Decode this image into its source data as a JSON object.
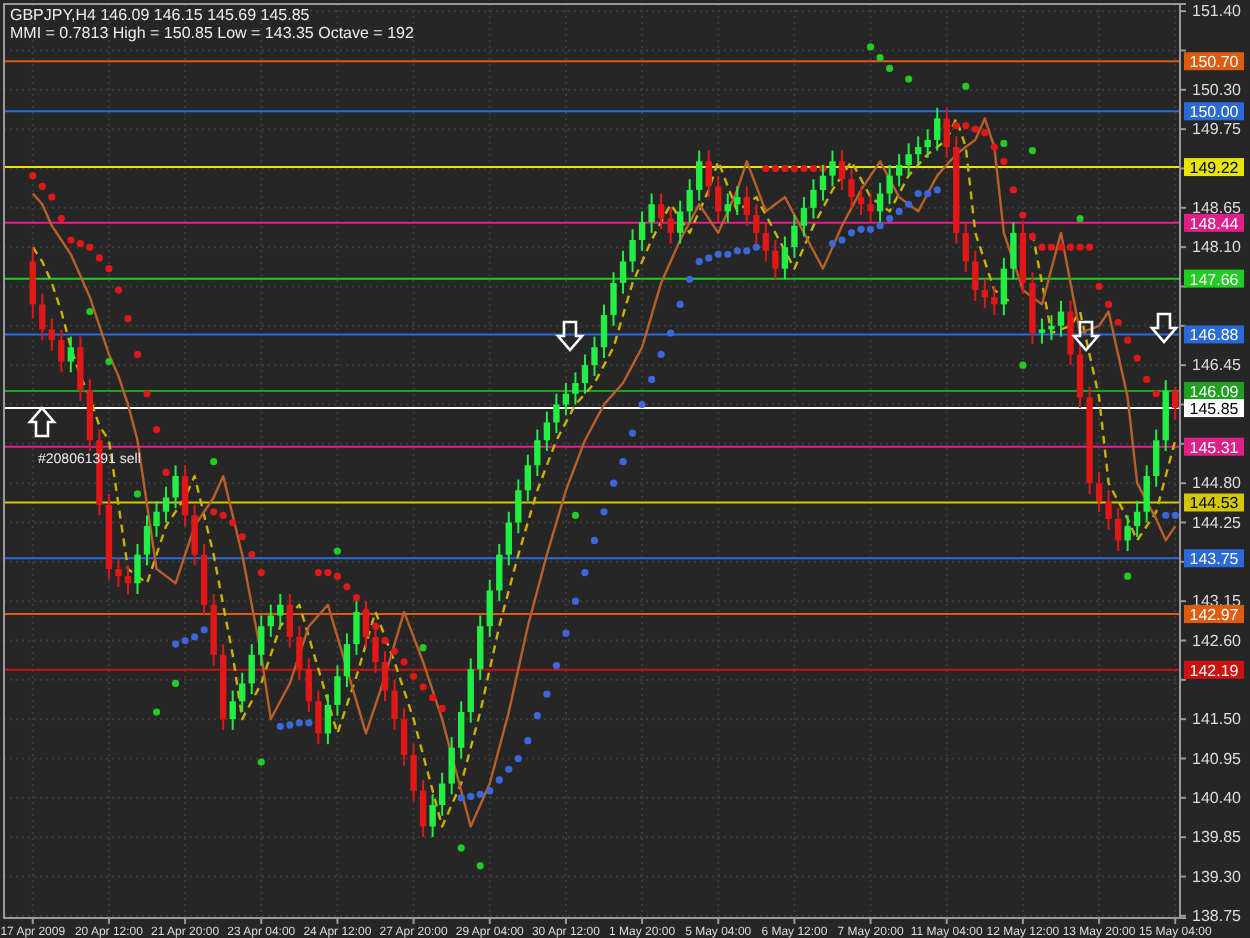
{
  "chart_data": {
    "type": "candlestick",
    "title": "GBPJPY,H4  146.09 146.15 145.69 145.85",
    "subtitle": "MMI = 0.7813  High = 150.85  Low = 143.35  Octave = 192",
    "annotations": [
      {
        "text": "#208061391 sell",
        "x": "17 Apr 2009",
        "y": 145.31
      }
    ],
    "categories": [
      "17 Apr 2009",
      null,
      null,
      null,
      null,
      null,
      null,
      null,
      "20 Apr 12:00",
      null,
      null,
      null,
      null,
      null,
      null,
      null,
      "21 Apr 20:00",
      null,
      null,
      null,
      null,
      null,
      null,
      null,
      "23 Apr 04:00",
      null,
      null,
      null,
      null,
      null,
      null,
      null,
      "24 Apr 12:00",
      null,
      null,
      null,
      null,
      null,
      null,
      null,
      "27 Apr 20:00",
      null,
      null,
      null,
      null,
      null,
      null,
      null,
      "29 Apr 04:00",
      null,
      null,
      null,
      null,
      null,
      null,
      null,
      "30 Apr 12:00",
      null,
      null,
      null,
      null,
      null,
      null,
      null,
      "1 May 20:00",
      null,
      null,
      null,
      null,
      null,
      null,
      null,
      "5 May 04:00",
      null,
      null,
      null,
      null,
      null,
      null,
      null,
      "6 May 12:00",
      null,
      null,
      null,
      null,
      null,
      null,
      null,
      "7 May 20:00",
      null,
      null,
      null,
      null,
      null,
      null,
      null,
      "11 May 04:00",
      null,
      null,
      null,
      null,
      null,
      null,
      null,
      "12 May 12:00",
      null,
      null,
      null,
      null,
      null,
      null,
      null,
      "13 May 20:00",
      null,
      null,
      null,
      null,
      null,
      null,
      null,
      "15 May 04:00"
    ],
    "ohlc": [
      [
        147.9,
        148.1,
        147.1,
        147.3
      ],
      [
        147.3,
        147.45,
        146.8,
        146.95
      ],
      [
        146.95,
        147.1,
        146.65,
        146.8
      ],
      [
        146.8,
        146.95,
        146.35,
        146.5
      ],
      [
        146.5,
        146.85,
        146.35,
        146.7
      ],
      [
        146.7,
        146.85,
        145.95,
        146.1
      ],
      [
        146.1,
        146.25,
        145.25,
        145.4
      ],
      [
        145.4,
        145.55,
        144.35,
        144.5
      ],
      [
        144.5,
        144.65,
        143.45,
        143.6
      ],
      [
        143.6,
        143.75,
        143.35,
        143.5
      ],
      [
        143.5,
        143.65,
        143.25,
        143.4
      ],
      [
        143.4,
        143.95,
        143.25,
        143.8
      ],
      [
        143.8,
        144.35,
        143.65,
        144.2
      ],
      [
        144.2,
        144.55,
        144.05,
        144.4
      ],
      [
        144.4,
        144.75,
        144.25,
        144.6
      ],
      [
        144.6,
        145.05,
        144.45,
        144.9
      ],
      [
        144.9,
        145.05,
        144.2,
        144.35
      ],
      [
        144.35,
        144.5,
        143.65,
        143.8
      ],
      [
        143.8,
        143.95,
        142.95,
        143.1
      ],
      [
        143.1,
        143.25,
        142.25,
        142.4
      ],
      [
        142.4,
        142.55,
        141.35,
        141.5
      ],
      [
        141.5,
        141.9,
        141.35,
        141.75
      ],
      [
        141.75,
        142.15,
        141.6,
        142.0
      ],
      [
        142.0,
        142.55,
        141.85,
        142.4
      ],
      [
        142.4,
        142.95,
        142.25,
        142.8
      ],
      [
        142.8,
        143.1,
        142.65,
        142.95
      ],
      [
        142.95,
        143.25,
        142.8,
        143.1
      ],
      [
        143.1,
        143.25,
        142.5,
        142.65
      ],
      [
        142.65,
        142.8,
        142.05,
        142.2
      ],
      [
        142.2,
        142.35,
        141.6,
        141.75
      ],
      [
        141.75,
        141.9,
        141.15,
        141.3
      ],
      [
        141.3,
        141.85,
        141.15,
        141.7
      ],
      [
        141.7,
        142.25,
        141.55,
        142.1
      ],
      [
        142.1,
        142.7,
        141.95,
        142.55
      ],
      [
        142.55,
        143.15,
        142.4,
        143.0
      ],
      [
        143.0,
        143.15,
        142.5,
        142.65
      ],
      [
        142.65,
        142.8,
        142.15,
        142.3
      ],
      [
        142.3,
        142.45,
        141.75,
        141.9
      ],
      [
        141.9,
        142.05,
        141.35,
        141.5
      ],
      [
        141.5,
        141.65,
        140.85,
        141.0
      ],
      [
        141.0,
        141.15,
        140.35,
        140.5
      ],
      [
        140.5,
        140.65,
        139.85,
        140.0
      ],
      [
        140.0,
        140.45,
        139.85,
        140.3
      ],
      [
        140.3,
        140.75,
        140.15,
        140.6
      ],
      [
        140.6,
        141.25,
        140.45,
        141.1
      ],
      [
        141.1,
        141.75,
        140.95,
        141.6
      ],
      [
        141.6,
        142.35,
        141.45,
        142.2
      ],
      [
        142.2,
        142.95,
        142.05,
        142.8
      ],
      [
        142.8,
        143.45,
        142.65,
        143.3
      ],
      [
        143.3,
        143.95,
        143.15,
        143.8
      ],
      [
        143.8,
        144.4,
        143.65,
        144.25
      ],
      [
        144.25,
        144.85,
        144.1,
        144.7
      ],
      [
        144.7,
        145.2,
        144.55,
        145.05
      ],
      [
        145.05,
        145.55,
        144.9,
        145.4
      ],
      [
        145.4,
        145.8,
        145.25,
        145.65
      ],
      [
        145.65,
        146.05,
        145.5,
        145.9
      ],
      [
        145.9,
        146.2,
        145.75,
        146.05
      ],
      [
        146.05,
        146.35,
        145.9,
        146.2
      ],
      [
        146.2,
        146.6,
        146.05,
        146.45
      ],
      [
        146.45,
        146.85,
        146.3,
        146.7
      ],
      [
        146.7,
        147.3,
        146.55,
        147.15
      ],
      [
        147.15,
        147.75,
        147.0,
        147.6
      ],
      [
        147.6,
        148.05,
        147.45,
        147.9
      ],
      [
        147.9,
        148.35,
        147.75,
        148.2
      ],
      [
        148.2,
        148.6,
        148.05,
        148.45
      ],
      [
        148.45,
        148.85,
        148.3,
        148.7
      ],
      [
        148.7,
        148.85,
        148.35,
        148.5
      ],
      [
        148.5,
        148.65,
        148.15,
        148.3
      ],
      [
        148.3,
        148.75,
        148.15,
        148.6
      ],
      [
        148.6,
        149.05,
        148.45,
        148.9
      ],
      [
        148.9,
        149.45,
        148.75,
        149.3
      ],
      [
        149.3,
        149.45,
        148.8,
        148.95
      ],
      [
        148.95,
        149.1,
        148.45,
        148.6
      ],
      [
        148.6,
        148.85,
        148.45,
        148.7
      ],
      [
        148.7,
        148.95,
        148.55,
        148.8
      ],
      [
        148.8,
        148.95,
        148.4,
        148.55
      ],
      [
        148.55,
        148.7,
        148.15,
        148.3
      ],
      [
        148.3,
        148.45,
        147.9,
        148.05
      ],
      [
        148.05,
        148.2,
        147.65,
        147.8
      ],
      [
        147.8,
        148.25,
        147.65,
        148.1
      ],
      [
        148.1,
        148.55,
        147.95,
        148.4
      ],
      [
        148.4,
        148.8,
        148.25,
        148.65
      ],
      [
        148.65,
        149.05,
        148.5,
        148.9
      ],
      [
        148.9,
        149.25,
        148.75,
        149.1
      ],
      [
        149.1,
        149.45,
        148.95,
        149.3
      ],
      [
        149.3,
        149.45,
        148.9,
        149.05
      ],
      [
        149.05,
        149.2,
        148.65,
        148.8
      ],
      [
        148.8,
        148.95,
        148.55,
        148.7
      ],
      [
        148.7,
        148.85,
        148.45,
        148.6
      ],
      [
        148.6,
        149.0,
        148.45,
        148.85
      ],
      [
        148.85,
        149.25,
        148.7,
        149.1
      ],
      [
        149.1,
        149.4,
        148.95,
        149.25
      ],
      [
        149.25,
        149.55,
        149.1,
        149.4
      ],
      [
        149.4,
        149.65,
        149.25,
        149.5
      ],
      [
        149.5,
        149.75,
        149.35,
        149.6
      ],
      [
        149.6,
        150.05,
        149.45,
        149.9
      ],
      [
        149.9,
        150.05,
        149.35,
        149.5
      ],
      [
        149.5,
        149.65,
        148.15,
        148.3
      ],
      [
        148.3,
        148.45,
        147.75,
        147.9
      ],
      [
        147.9,
        148.05,
        147.35,
        147.5
      ],
      [
        147.5,
        147.65,
        147.25,
        147.4
      ],
      [
        147.4,
        147.55,
        147.15,
        147.3
      ],
      [
        147.3,
        147.95,
        147.15,
        147.8
      ],
      [
        147.8,
        148.45,
        147.65,
        148.3
      ],
      [
        148.3,
        148.45,
        147.45,
        147.6
      ],
      [
        147.6,
        147.75,
        146.75,
        146.9
      ],
      [
        146.9,
        147.1,
        146.75,
        146.95
      ],
      [
        146.95,
        147.15,
        146.8,
        147.0
      ],
      [
        147.0,
        147.35,
        146.85,
        147.2
      ],
      [
        147.2,
        147.35,
        146.45,
        146.6
      ],
      [
        146.6,
        146.75,
        145.85,
        146.0
      ],
      [
        146.0,
        146.15,
        144.65,
        144.8
      ],
      [
        144.8,
        144.95,
        144.4,
        144.55
      ],
      [
        144.55,
        144.7,
        144.15,
        144.3
      ],
      [
        144.3,
        144.45,
        143.85,
        144.0
      ],
      [
        144.0,
        144.35,
        143.85,
        144.2
      ],
      [
        144.2,
        144.55,
        144.05,
        144.4
      ],
      [
        144.4,
        145.05,
        144.25,
        144.9
      ],
      [
        144.9,
        145.55,
        144.75,
        145.4
      ],
      [
        145.4,
        146.24,
        145.25,
        146.09
      ],
      [
        146.09,
        146.15,
        145.69,
        145.85
      ]
    ],
    "series": [
      {
        "type": "line",
        "color": "#c8b400",
        "line_style": "dashed",
        "values": [
          148.1,
          147.9,
          147.6,
          147.2,
          146.7,
          146.3,
          146.0,
          145.6,
          145.4,
          144.5,
          143.6,
          143.5,
          143.4,
          143.8,
          144.2,
          144.4,
          144.6,
          144.9,
          144.35,
          143.8,
          143.1,
          142.4,
          141.5,
          141.75,
          142.0,
          142.4,
          142.8,
          142.95,
          143.1,
          142.65,
          142.2,
          141.75,
          141.3,
          141.7,
          142.1,
          142.55,
          143.0,
          142.65,
          142.3,
          141.9,
          141.5,
          141.0,
          140.5,
          140.0,
          140.3,
          140.6,
          141.1,
          141.6,
          142.2,
          142.8,
          143.3,
          143.8,
          144.25,
          144.7,
          145.05,
          145.4,
          145.65,
          145.9,
          146.05,
          146.2,
          146.45,
          146.7,
          147.15,
          147.6,
          147.9,
          148.2,
          148.45,
          148.7,
          148.5,
          148.3,
          148.6,
          148.9,
          149.3,
          148.95,
          148.6,
          148.7,
          148.8,
          148.55,
          148.3,
          148.05,
          147.8,
          148.1,
          148.4,
          148.65,
          148.9,
          149.1,
          149.3,
          149.05,
          148.8,
          148.7,
          148.6,
          148.85,
          149.1,
          149.25,
          149.4,
          149.5,
          149.6,
          149.9,
          149.5,
          148.3,
          147.9,
          147.5,
          147.4,
          147.3,
          null,
          148.3,
          147.6,
          146.9,
          146.95,
          147.0,
          147.2,
          146.6,
          146.0,
          144.8,
          144.55,
          144.3,
          144.0,
          144.2,
          144.4,
          144.9,
          145.4
        ]
      },
      {
        "type": "line",
        "color": "#b8602c",
        "line_style": "solid",
        "values": [
          148.85,
          148.7,
          148.4,
          148.2,
          148.0,
          147.7,
          147.4,
          147.0,
          146.6,
          146.3,
          145.9,
          145.4,
          144.5,
          143.6,
          143.5,
          143.4,
          143.8,
          144.2,
          144.4,
          144.6,
          144.9,
          144.35,
          143.8,
          143.1,
          142.4,
          141.5,
          141.75,
          142.0,
          142.4,
          142.8,
          142.95,
          143.1,
          142.65,
          142.2,
          141.75,
          141.3,
          141.7,
          142.1,
          142.55,
          143.0,
          142.65,
          142.3,
          141.9,
          141.5,
          141.0,
          140.5,
          140.0,
          140.3,
          140.6,
          141.1,
          141.6,
          142.2,
          142.8,
          143.3,
          143.8,
          144.25,
          144.7,
          145.05,
          145.4,
          145.65,
          145.9,
          146.05,
          146.2,
          146.45,
          146.7,
          147.15,
          147.6,
          147.9,
          148.2,
          148.45,
          148.7,
          148.5,
          148.3,
          148.6,
          148.9,
          149.3,
          148.95,
          148.6,
          148.7,
          148.8,
          148.55,
          148.3,
          148.05,
          147.8,
          148.1,
          148.4,
          148.65,
          148.9,
          149.1,
          149.3,
          149.05,
          148.8,
          148.7,
          148.6,
          148.85,
          149.1,
          149.25,
          149.4,
          149.5,
          149.6,
          149.9,
          149.5,
          148.3,
          147.9,
          147.5,
          147.4,
          147.3,
          147.8,
          148.3,
          147.6,
          146.9,
          146.95,
          147.0,
          147.2,
          146.6,
          146.0,
          144.8,
          144.55,
          144.3,
          144.0,
          144.2
        ]
      },
      {
        "type": "scatter",
        "color": "#e01818",
        "marker": "circle",
        "values": [
          149.1,
          148.95,
          148.8,
          148.5,
          148.2,
          148.15,
          148.1,
          147.95,
          147.8,
          147.5,
          147.1,
          146.6,
          146.05,
          145.55,
          144.95,
          null,
          null,
          null,
          null,
          144.4,
          144.35,
          144.25,
          144.05,
          143.8,
          143.55,
          null,
          null,
          null,
          null,
          null,
          143.55,
          143.55,
          143.5,
          143.35,
          143.2,
          143.0,
          142.8,
          142.6,
          142.45,
          142.3,
          142.1,
          141.95,
          141.8,
          141.65,
          null,
          null,
          null,
          null,
          null,
          null,
          null,
          null,
          null,
          null,
          null,
          null,
          null,
          null,
          null,
          null,
          null,
          null,
          null,
          null,
          null,
          null,
          null,
          null,
          null,
          null,
          null,
          null,
          null,
          null,
          null,
          null,
          null,
          149.2,
          149.2,
          149.2,
          149.2,
          149.2,
          149.2,
          149.2,
          null,
          null,
          null,
          null,
          null,
          null,
          null,
          null,
          null,
          null,
          null,
          null,
          149.8,
          149.8,
          149.8,
          149.75,
          149.7,
          149.5,
          149.3,
          148.9,
          148.55,
          148.25,
          148.1,
          148.1,
          148.1,
          148.1,
          148.1,
          148.1,
          147.55,
          147.3,
          147.05,
          146.8,
          146.55,
          146.25,
          146.05,
          null,
          null
        ]
      },
      {
        "type": "scatter",
        "color": "#3a68d8",
        "marker": "circle",
        "values": [
          null,
          null,
          null,
          null,
          null,
          null,
          null,
          null,
          null,
          null,
          null,
          null,
          null,
          null,
          null,
          142.55,
          142.6,
          142.65,
          142.75,
          null,
          null,
          null,
          null,
          null,
          null,
          null,
          141.4,
          141.42,
          141.45,
          141.45,
          null,
          null,
          null,
          null,
          null,
          null,
          null,
          null,
          null,
          null,
          null,
          null,
          null,
          null,
          null,
          140.4,
          140.42,
          140.45,
          140.5,
          140.65,
          140.8,
          140.95,
          141.2,
          141.55,
          141.85,
          142.25,
          142.7,
          143.15,
          143.55,
          144.0,
          144.4,
          144.8,
          145.1,
          145.5,
          145.9,
          146.25,
          146.6,
          146.9,
          147.3,
          147.65,
          147.9,
          147.95,
          148.0,
          148.0,
          148.05,
          148.05,
          148.1,
          null,
          null,
          null,
          null,
          null,
          null,
          null,
          148.15,
          148.2,
          148.3,
          148.35,
          148.35,
          148.4,
          148.5,
          148.6,
          148.7,
          148.85,
          148.85,
          148.9,
          null,
          null,
          null,
          null,
          null,
          null,
          null,
          null,
          null,
          null,
          null,
          null,
          null,
          null,
          null,
          null,
          null,
          null,
          null,
          null,
          null,
          null,
          null,
          144.35,
          144.35
        ]
      },
      {
        "type": "scatter",
        "color": "#22cc22",
        "marker": "circle",
        "values": [
          null,
          null,
          null,
          null,
          null,
          null,
          147.2,
          null,
          146.5,
          null,
          null,
          144.65,
          null,
          141.6,
          null,
          142.0,
          null,
          null,
          null,
          145.1,
          null,
          null,
          null,
          null,
          140.9,
          null,
          null,
          null,
          null,
          null,
          null,
          null,
          143.85,
          null,
          null,
          null,
          null,
          null,
          null,
          null,
          null,
          142.5,
          null,
          null,
          null,
          139.7,
          null,
          139.45,
          null,
          null,
          null,
          null,
          null,
          null,
          null,
          null,
          null,
          144.35,
          null,
          null,
          null,
          null,
          null,
          null,
          null,
          null,
          null,
          null,
          null,
          null,
          null,
          null,
          null,
          null,
          null,
          null,
          null,
          null,
          null,
          null,
          null,
          null,
          null,
          null,
          null,
          null,
          null,
          null,
          150.9,
          150.75,
          150.6,
          null,
          150.45,
          null,
          null,
          null,
          null,
          null,
          150.35,
          null,
          null,
          null,
          149.55,
          null,
          146.45,
          149.45,
          null,
          null,
          null,
          null,
          148.5,
          null,
          null,
          null,
          null,
          143.5,
          null,
          null,
          null,
          null,
          null
        ]
      }
    ],
    "ylim": [
      138.72,
      151.5
    ],
    "yticks": [
      {
        "value": 138.75,
        "label": "138.75"
      },
      {
        "value": 139.3,
        "label": "139.30"
      },
      {
        "value": 139.85,
        "label": "139.85"
      },
      {
        "value": 140.4,
        "label": "140.40"
      },
      {
        "value": 140.95,
        "label": "140.95"
      },
      {
        "value": 141.5,
        "label": "141.50"
      },
      {
        "value": 142.05,
        "label": null
      },
      {
        "value": 142.6,
        "label": "142.60"
      },
      {
        "value": 143.15,
        "label": "143.15"
      },
      {
        "value": 143.7,
        "label": null
      },
      {
        "value": 144.25,
        "label": "144.25"
      },
      {
        "value": 144.8,
        "label": "144.80"
      },
      {
        "value": 145.35,
        "label": null
      },
      {
        "value": 145.9,
        "label": null
      },
      {
        "value": 146.45,
        "label": "146.45"
      },
      {
        "value": 147.0,
        "label": null
      },
      {
        "value": 147.55,
        "label": null
      },
      {
        "value": 148.1,
        "label": "148.10"
      },
      {
        "value": 148.65,
        "label": "148.65"
      },
      {
        "value": 149.2,
        "label": null
      },
      {
        "value": 149.75,
        "label": "149.75"
      },
      {
        "value": 150.3,
        "label": "150.30"
      },
      {
        "value": 150.85,
        "label": null
      },
      {
        "value": 151.4,
        "label": "151.40"
      }
    ],
    "ref_lines": [
      {
        "axis": "y",
        "value": 150.7,
        "label": "150.70",
        "color": "#e05a10"
      },
      {
        "axis": "y",
        "value": 150.0,
        "label": "150.00",
        "color": "#2a6ad8"
      },
      {
        "axis": "y",
        "value": 149.22,
        "label": "149.22",
        "color": "#e6e600"
      },
      {
        "axis": "y",
        "value": 148.44,
        "label": "148.44",
        "color": "#e0208a"
      },
      {
        "axis": "y",
        "value": 147.66,
        "label": "147.66",
        "color": "#22cc22"
      },
      {
        "axis": "y",
        "value": 146.88,
        "label": "146.88",
        "color": "#2a6ad8"
      },
      {
        "axis": "y",
        "value": 146.09,
        "label": "146.09",
        "color": "#1fa01f"
      },
      {
        "axis": "y",
        "value": 145.85,
        "label": "145.85",
        "color": "#ffffff"
      },
      {
        "axis": "y",
        "value": 145.31,
        "label": "145.31",
        "color": "#e0208a"
      },
      {
        "axis": "y",
        "value": 144.53,
        "label": "144.53",
        "color": "#d4c800"
      },
      {
        "axis": "y",
        "value": 143.75,
        "label": "143.75",
        "color": "#2a6ad8"
      },
      {
        "axis": "y",
        "value": 142.97,
        "label": "142.97",
        "color": "#e05a10"
      },
      {
        "axis": "y",
        "value": 142.19,
        "label": "142.19",
        "color": "#cc1111"
      }
    ],
    "grid": true
  }
}
